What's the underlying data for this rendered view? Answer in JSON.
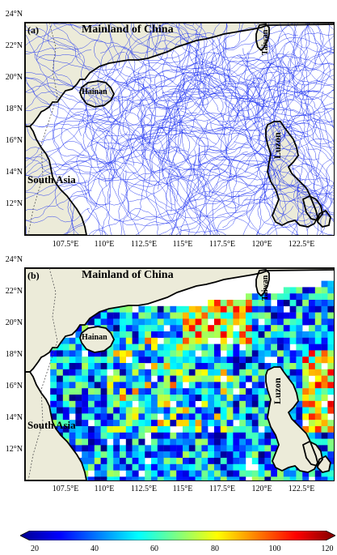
{
  "panel_a": {
    "label": "(a)",
    "mainland": "Mainland of China",
    "taiwan": "Taiwan",
    "hainan": "Hainan",
    "luzon": "Luzon",
    "south_asia": "South Asia"
  },
  "panel_b": {
    "label": "(b)",
    "mainland": "Mainland of China",
    "taiwan": "Taiwan",
    "hainan": "Hainan",
    "luzon": "Luzon",
    "south_asia": "South Asia"
  },
  "y_ticks": [
    "24°N",
    "22°N",
    "20°N",
    "18°N",
    "16°N",
    "14°N",
    "12°N"
  ],
  "x_ticks": [
    "107.5°E",
    "110°E",
    "112.5°E",
    "115°E",
    "117.5°E",
    "120°E",
    "122.5°E"
  ],
  "colorbar": {
    "ticks": [
      "20",
      "40",
      "60",
      "80",
      "100",
      "120"
    ],
    "min": 20,
    "max": 120
  },
  "colors": {
    "land": "#ecebd9",
    "trajectory": "#1a2ef0",
    "coast": "#000000"
  }
}
